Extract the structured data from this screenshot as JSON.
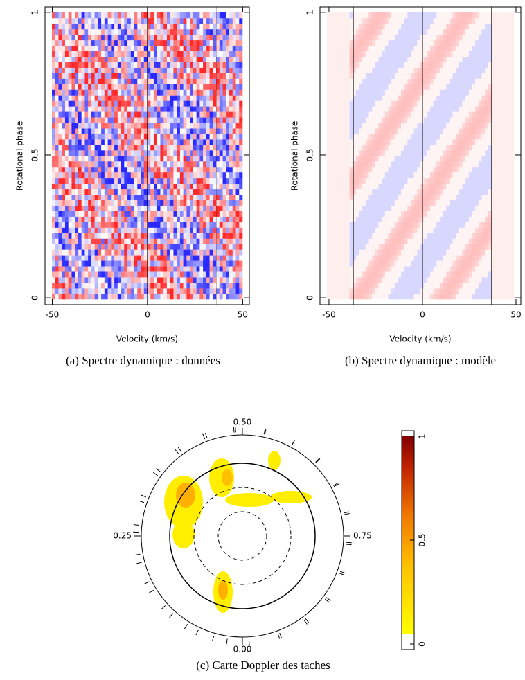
{
  "chart_data": [
    {
      "type": "heatmap",
      "caption": "(a) Spectre dynamique : données",
      "xlabel": "Velocity (km/s)",
      "ylabel": "Rotational phase",
      "xlim": [
        -53.8,
        53.5
      ],
      "ylim": [
        -0.024,
        1.019
      ],
      "xticks": [
        -50,
        0,
        50
      ],
      "yticks": [
        0,
        0.5,
        1
      ],
      "vlines": [
        -36.5,
        0,
        36.5
      ],
      "pattern": "noise"
    },
    {
      "type": "heatmap",
      "caption": "(b) Spectre dynamique : modèle",
      "xlabel": "Velocity (km/s)",
      "ylabel": "Rotational phase",
      "xlim": [
        -54.8,
        52.6
      ],
      "ylim": [
        -0.024,
        1.019
      ],
      "xticks": [
        -50,
        0,
        50
      ],
      "yticks": [
        0,
        0.5,
        1
      ],
      "vlines": [
        -37,
        0,
        37
      ],
      "pattern": "bands"
    },
    {
      "type": "polar",
      "caption": "(c) Carte Doppler des taches",
      "phases": [
        {
          "value": 0,
          "label": "0.00"
        },
        0.25,
        {
          "value": 0.5,
          "label": "0.50"
        },
        0.75
      ],
      "clim": [
        0,
        1
      ],
      "cticks": [
        0,
        0.5,
        1
      ]
    }
  ]
}
